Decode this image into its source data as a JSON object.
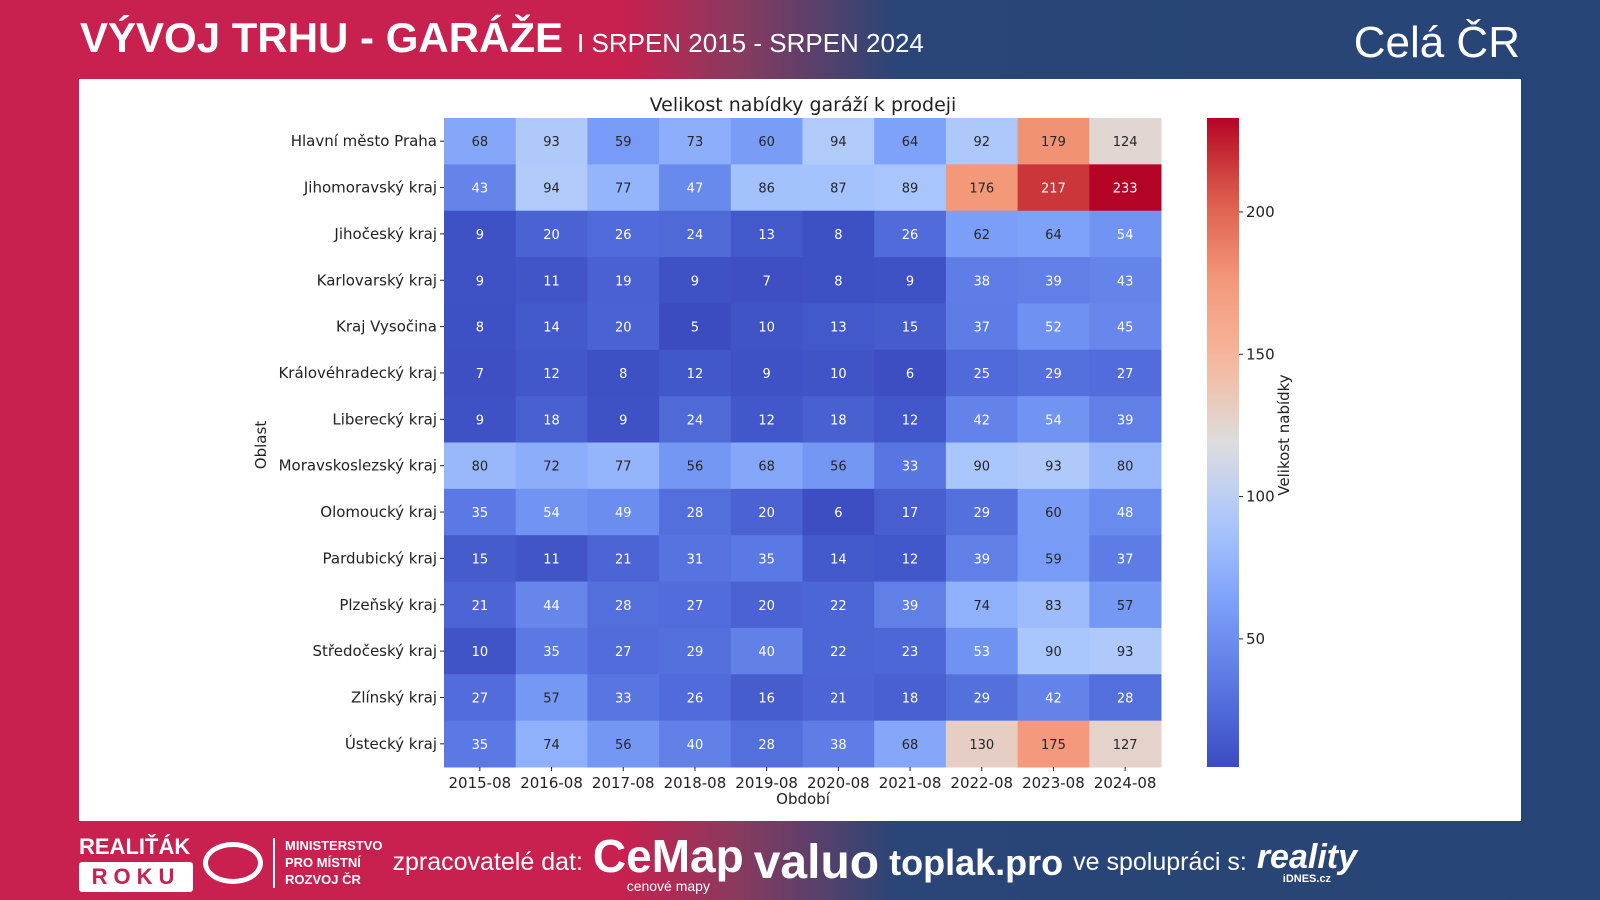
{
  "header": {
    "title": "VÝVOJ TRHU - GARÁŽE",
    "subtitle": "I SRPEN 2015 - SRPEN 2024",
    "region": "Celá ČR"
  },
  "chart_data": {
    "type": "heatmap",
    "title": "Velikost nabídky garáží k prodeji",
    "xlabel": "Období",
    "ylabel": "Oblast",
    "colorbar_label": "Velikost nabídky",
    "colormap": "coolwarm",
    "crange": [
      5,
      233
    ],
    "colorbar_ticks": [
      50,
      100,
      150,
      200
    ],
    "x": [
      "2015-08",
      "2016-08",
      "2017-08",
      "2018-08",
      "2019-08",
      "2020-08",
      "2021-08",
      "2022-08",
      "2023-08",
      "2024-08"
    ],
    "y": [
      "Hlavní město Praha",
      "Jihomoravský kraj",
      "Jihočeský kraj",
      "Karlovarský kraj",
      "Kraj Vysočina",
      "Královéhradecký kraj",
      "Liberecký kraj",
      "Moravskoslezský kraj",
      "Olomoucký kraj",
      "Pardubický kraj",
      "Plzeňský kraj",
      "Středočeský kraj",
      "Zlínský kraj",
      "Ústecký kraj"
    ],
    "values": [
      [
        68,
        93,
        59,
        73,
        60,
        94,
        64,
        92,
        179,
        124
      ],
      [
        43,
        94,
        77,
        47,
        86,
        87,
        89,
        176,
        217,
        233
      ],
      [
        9,
        20,
        26,
        24,
        13,
        8,
        26,
        62,
        64,
        54
      ],
      [
        9,
        11,
        19,
        9,
        7,
        8,
        9,
        38,
        39,
        43
      ],
      [
        8,
        14,
        20,
        5,
        10,
        13,
        15,
        37,
        52,
        45
      ],
      [
        7,
        12,
        8,
        12,
        9,
        10,
        6,
        25,
        29,
        27
      ],
      [
        9,
        18,
        9,
        24,
        12,
        18,
        12,
        42,
        54,
        39
      ],
      [
        80,
        72,
        77,
        56,
        68,
        56,
        33,
        90,
        93,
        80
      ],
      [
        35,
        54,
        49,
        28,
        20,
        6,
        17,
        29,
        60,
        48
      ],
      [
        15,
        11,
        21,
        31,
        35,
        14,
        12,
        39,
        59,
        37
      ],
      [
        21,
        44,
        28,
        27,
        20,
        22,
        39,
        74,
        83,
        57
      ],
      [
        10,
        35,
        27,
        29,
        40,
        22,
        23,
        53,
        90,
        93
      ],
      [
        27,
        57,
        33,
        26,
        16,
        21,
        18,
        29,
        42,
        28
      ],
      [
        35,
        74,
        56,
        40,
        28,
        38,
        68,
        130,
        175,
        127
      ]
    ]
  },
  "footer": {
    "award_top": "REALIŤÁK",
    "award_bottom": "ROKU",
    "ministry": [
      "MINISTERSTVO",
      "PRO MÍSTNÍ",
      "ROZVOJ ČR"
    ],
    "processors_label": "zpracovatelé dat:",
    "cemap": "CeMap",
    "cemap_sub": "cenové mapy",
    "valuo": "valuo",
    "toplak": "toplak.pro",
    "coop_label": "ve spolupráci s:",
    "reality": "reality",
    "reality_sub": "iDNES.cz"
  }
}
